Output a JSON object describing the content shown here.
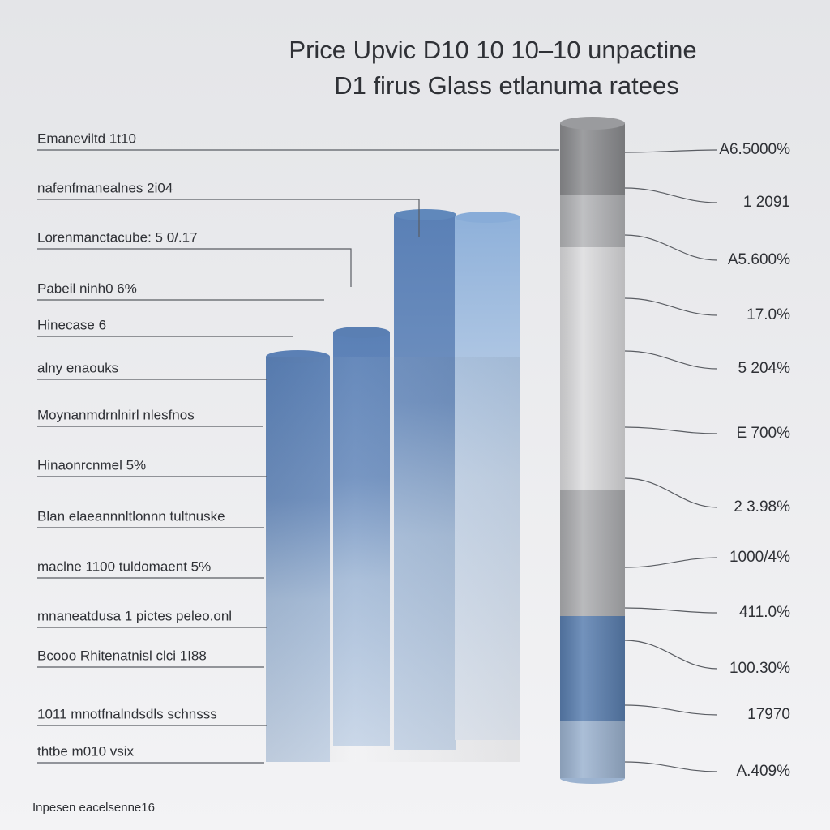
{
  "title": {
    "line1": "Price Upvic D10 10 10–10 unpactine",
    "line2": "D1 firus Glass etlanuma ratees"
  },
  "left_labels": [
    "Emaneviltd 1t10",
    "nafenfmanealnes 2i04",
    "Lorenmanctacube: 5 0/.17",
    "Pabeil ninh0 6%",
    "Hinecase 6",
    "alny enaouks",
    "Moynanmdrnlnirl nlesfnos",
    "Hinaonrcnmel 5%",
    "Blan elaeannnltlonnn tultnuske",
    "maclne 1100 tuldomaent 5%",
    "mnaneatdusa 1 pictes peleo.onl",
    "Bcooo Rhitenatnisl clci 1I88",
    "1011 mnotfnalndsdls schnsss",
    "thtbe m010 vsix"
  ],
  "right_labels": [
    "A6.5000%",
    "1 2091",
    "A5.600%",
    "17.0%",
    "5 204%",
    "E 700%",
    "2 3.98%",
    "1000/4%",
    "411.0%",
    "100.30%",
    "17970",
    "A.409%"
  ],
  "footer": "Inpesen eacelsenne16"
}
